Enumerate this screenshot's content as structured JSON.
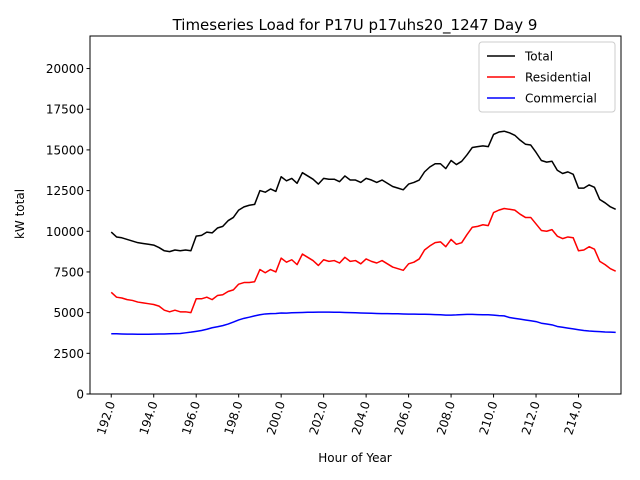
{
  "chart_data": {
    "type": "line",
    "title": "Timeseries Load for P17U p17uhs20_1247  Day 9",
    "xlabel": "Hour of Year",
    "ylabel": "kW total",
    "xlim": [
      191.0,
      216.0
    ],
    "ylim": [
      0,
      22000
    ],
    "xticks": [
      192.0,
      194.0,
      196.0,
      198.0,
      200.0,
      202.0,
      204.0,
      206.0,
      208.0,
      210.0,
      212.0,
      214.0
    ],
    "xtick_labels": [
      "192.0",
      "194.0",
      "196.0",
      "198.0",
      "200.0",
      "202.0",
      "204.0",
      "206.0",
      "208.0",
      "210.0",
      "212.0",
      "214.0"
    ],
    "yticks": [
      0,
      2500,
      5000,
      7500,
      10000,
      12500,
      15000,
      17500,
      20000
    ],
    "ytick_labels": [
      "0",
      "2500",
      "5000",
      "7500",
      "10000",
      "12500",
      "15000",
      "17500",
      "20000"
    ],
    "x_start": 192.0,
    "x_step": 0.25,
    "legend_position": "top-right",
    "series": [
      {
        "name": "Total",
        "color": "#000000",
        "values": [
          9950,
          9650,
          9600,
          9500,
          9400,
          9300,
          9250,
          9200,
          9150,
          9000,
          8800,
          8750,
          8850,
          8800,
          8850,
          8800,
          9700,
          9750,
          9950,
          9900,
          10200,
          10300,
          10650,
          10850,
          11300,
          11500,
          11600,
          11650,
          12500,
          12400,
          12600,
          12450,
          13350,
          13100,
          13250,
          12950,
          13600,
          13400,
          13200,
          12900,
          13250,
          13200,
          13200,
          13050,
          13400,
          13150,
          13150,
          13000,
          13250,
          13150,
          13000,
          13150,
          12950,
          12750,
          12650,
          12550,
          12900,
          13000,
          13150,
          13650,
          13950,
          14150,
          14150,
          13850,
          14350,
          14100,
          14300,
          14700,
          15150,
          15200,
          15250,
          15200,
          15950,
          16100,
          16150,
          16050,
          15900,
          15600,
          15350,
          15300,
          14850,
          14350,
          14250,
          14300,
          13750,
          13550,
          13650,
          13500,
          12650,
          12650,
          12850,
          12700,
          11950,
          11750,
          11500,
          11350
        ]
      },
      {
        "name": "Residential",
        "color": "#ff0000",
        "values": [
          6250,
          5950,
          5900,
          5800,
          5750,
          5650,
          5600,
          5550,
          5500,
          5400,
          5150,
          5050,
          5150,
          5050,
          5050,
          5000,
          5850,
          5850,
          5950,
          5800,
          6050,
          6100,
          6300,
          6400,
          6750,
          6850,
          6850,
          6900,
          7650,
          7450,
          7650,
          7500,
          8350,
          8100,
          8250,
          7950,
          8600,
          8400,
          8200,
          7900,
          8250,
          8150,
          8200,
          8050,
          8400,
          8150,
          8200,
          8000,
          8300,
          8150,
          8050,
          8200,
          8000,
          7800,
          7700,
          7600,
          8000,
          8100,
          8300,
          8850,
          9100,
          9300,
          9350,
          9050,
          9500,
          9200,
          9300,
          9800,
          10250,
          10300,
          10400,
          10350,
          11150,
          11300,
          11400,
          11350,
          11300,
          11050,
          10850,
          10850,
          10450,
          10050,
          10000,
          10100,
          9700,
          9550,
          9650,
          9600,
          8800,
          8850,
          9050,
          8900,
          8150,
          7950,
          7700,
          7550
        ]
      },
      {
        "name": "Commercial",
        "color": "#0000ff",
        "values": [
          3700,
          3700,
          3690,
          3680,
          3680,
          3670,
          3670,
          3670,
          3680,
          3690,
          3690,
          3700,
          3710,
          3720,
          3760,
          3800,
          3850,
          3900,
          3980,
          4070,
          4130,
          4200,
          4300,
          4420,
          4550,
          4650,
          4720,
          4800,
          4870,
          4920,
          4940,
          4950,
          4980,
          4970,
          4990,
          5000,
          5010,
          5020,
          5020,
          5030,
          5030,
          5030,
          5020,
          5020,
          5010,
          5000,
          4990,
          4980,
          4970,
          4960,
          4950,
          4940,
          4940,
          4930,
          4930,
          4920,
          4910,
          4910,
          4900,
          4900,
          4890,
          4880,
          4870,
          4850,
          4850,
          4860,
          4880,
          4890,
          4890,
          4880,
          4870,
          4870,
          4850,
          4820,
          4800,
          4700,
          4650,
          4600,
          4550,
          4500,
          4450,
          4350,
          4300,
          4250,
          4150,
          4100,
          4050,
          4000,
          3950,
          3900,
          3870,
          3850,
          3830,
          3810,
          3800,
          3790
        ]
      }
    ]
  }
}
